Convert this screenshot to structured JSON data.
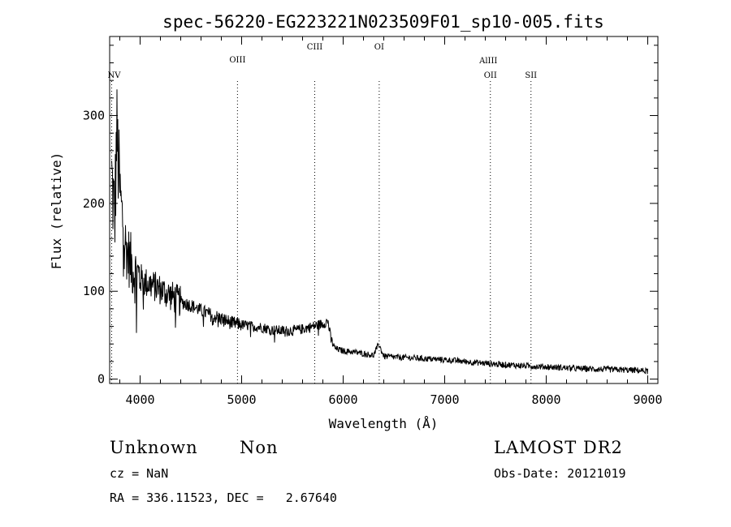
{
  "chart_data": {
    "type": "line",
    "title": "spec-56220-EG223221N023509F01_sp10-005.fits",
    "xlabel": "Wavelength (Å)",
    "ylabel": "Flux (relative)",
    "xlim": [
      3700,
      9100
    ],
    "ylim": [
      -5,
      390
    ],
    "xticks": [
      4000,
      5000,
      6000,
      7000,
      8000,
      9000
    ],
    "yticks": [
      0,
      100,
      200,
      300
    ],
    "grid": false,
    "lines": [
      {
        "name": "NV",
        "x": 3720
      },
      {
        "name": "OIII",
        "x": 4959
      },
      {
        "name": "CIII",
        "x": 5720
      },
      {
        "name": "OI",
        "x": 6355
      },
      {
        "name": "AlIII",
        "x": 7430
      },
      {
        "name": "OII",
        "x": 7450
      },
      {
        "name": "SII",
        "x": 7850
      }
    ],
    "series": [
      {
        "x": [
          3720,
          3750,
          3770,
          3790,
          3820,
          3860,
          3900,
          3950,
          4000,
          4050,
          4100,
          4150,
          4200,
          4300,
          4400,
          4500,
          4600,
          4700,
          4800,
          4900,
          5000,
          5100,
          5200,
          5300,
          5400,
          5500,
          5600,
          5700,
          5800,
          5850,
          5880,
          5920,
          6000,
          6100,
          6200,
          6300,
          6350,
          6400,
          6500,
          6700,
          7000,
          7300,
          7500,
          7800,
          8000,
          8300,
          8600,
          8900,
          9000
        ],
        "y": [
          230,
          180,
          285,
          230,
          190,
          150,
          135,
          120,
          115,
          110,
          108,
          105,
          102,
          95,
          88,
          84,
          78,
          73,
          69,
          64,
          62,
          60,
          59,
          56,
          55,
          55,
          57,
          60,
          63,
          66,
          45,
          35,
          32,
          31,
          29,
          27,
          40,
          26,
          25,
          24,
          22,
          19,
          17,
          15,
          14,
          12,
          11,
          10,
          9
        ]
      }
    ]
  },
  "footer": {
    "object_class": "Unknown",
    "subclass": "Non",
    "survey": "LAMOST DR2",
    "cz": "cz = NaN",
    "obs_date": "Obs-Date: 20121019",
    "coords": "RA = 336.11523, DEC =   2.67640"
  }
}
